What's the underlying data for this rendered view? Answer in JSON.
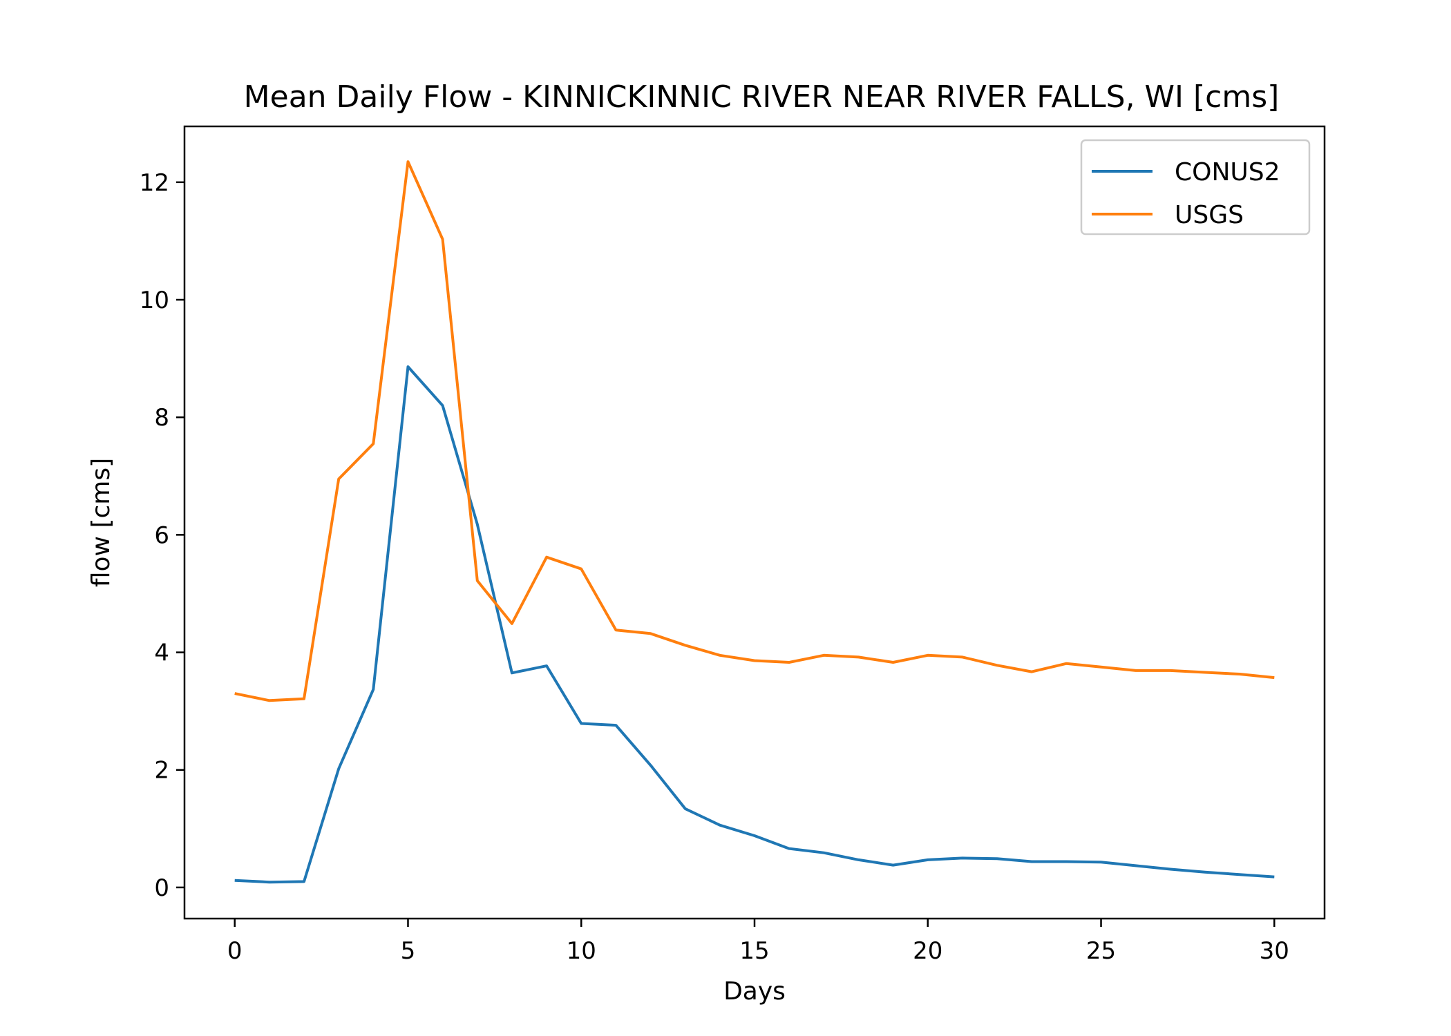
{
  "chart_data": {
    "type": "line",
    "title": "Mean Daily Flow - KINNICKINNIC RIVER NEAR RIVER FALLS, WI [cms]",
    "xlabel": "Days",
    "ylabel": "flow [cms]",
    "xlim": [
      -1.45,
      31.45
    ],
    "ylim": [
      -0.53,
      12.95
    ],
    "xticks": [
      0,
      5,
      10,
      15,
      20,
      25,
      30
    ],
    "yticks": [
      0,
      2,
      4,
      6,
      8,
      10,
      12
    ],
    "grid": false,
    "legend_position": "top-right",
    "x": [
      0,
      1,
      2,
      3,
      4,
      5,
      6,
      7,
      8,
      9,
      10,
      11,
      12,
      13,
      14,
      15,
      16,
      17,
      18,
      19,
      20,
      21,
      22,
      23,
      24,
      25,
      26,
      27,
      28,
      29,
      30
    ],
    "series": [
      {
        "name": "CONUS2",
        "color": "#1f77b4",
        "values": [
          0.12,
          0.09,
          0.1,
          2.02,
          3.37,
          8.86,
          8.2,
          6.18,
          3.65,
          3.77,
          2.79,
          2.76,
          2.08,
          1.34,
          1.06,
          0.88,
          0.66,
          0.59,
          0.47,
          0.38,
          0.47,
          0.5,
          0.49,
          0.44,
          0.44,
          0.43,
          0.37,
          0.31,
          0.26,
          0.22,
          0.18
        ]
      },
      {
        "name": "USGS",
        "color": "#ff7f0e",
        "values": [
          3.3,
          3.18,
          3.21,
          6.95,
          7.55,
          12.35,
          11.03,
          5.22,
          4.49,
          5.62,
          5.42,
          4.38,
          4.32,
          4.12,
          3.95,
          3.86,
          3.83,
          3.95,
          3.92,
          3.83,
          3.95,
          3.92,
          3.78,
          3.67,
          3.81,
          3.75,
          3.69,
          3.69,
          3.66,
          3.63,
          3.57
        ]
      }
    ]
  }
}
